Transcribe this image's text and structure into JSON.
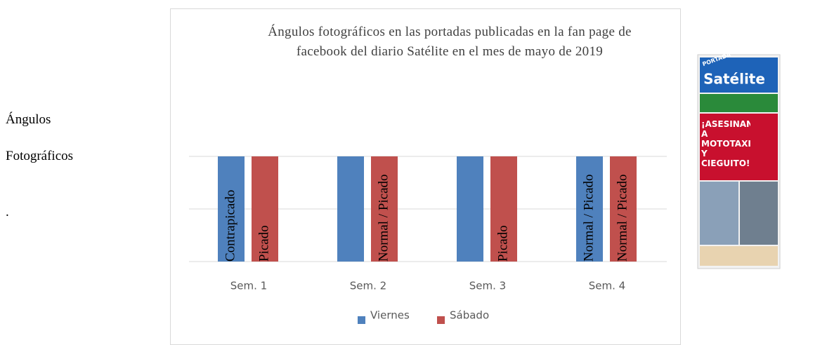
{
  "side_text": [
    "Ángulos",
    "Fotográficos",
    "."
  ],
  "chart_data": {
    "type": "bar",
    "title": "Ángulos fotográficos en las portadas publicadas en la fan page de facebook del diario Satélite en el mes de mayo de 2019",
    "categories": [
      "Sem. 1",
      "Sem. 2",
      "Sem. 3",
      "Sem. 4"
    ],
    "series": [
      {
        "name": "Viernes",
        "color": "#4f81bd",
        "values": [
          1,
          1,
          1,
          1
        ],
        "value_labels": [
          "Contrapicado",
          null,
          null,
          "Normal / Picado"
        ]
      },
      {
        "name": "Sábado",
        "color": "#c0504d",
        "values": [
          1,
          1,
          1,
          1
        ],
        "value_labels": [
          "Picado",
          "Normal / Picado",
          "Picado",
          "Normal / Picado"
        ]
      }
    ],
    "ylim": [
      0,
      1.2
    ],
    "yticks": [
      0,
      0.5,
      1
    ],
    "grid": true,
    "legend": "bottom"
  },
  "newspaper": {
    "tag": "PORTADA",
    "masthead": "Satélite",
    "headline": "¡ASESINAN A MOTOTAXISTA Y CIEGUITO!"
  }
}
